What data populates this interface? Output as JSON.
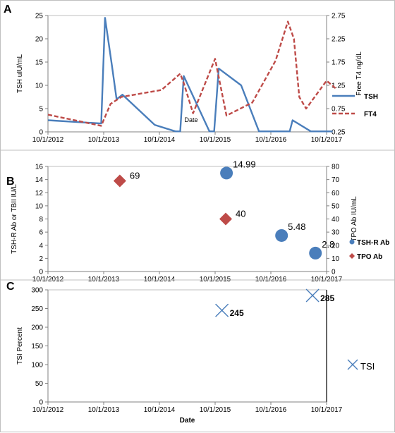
{
  "chart_data": [
    {
      "panel_label": "A",
      "type": "line",
      "x_ticks": [
        "10/1/2012",
        "10/1/2013",
        "10/1/2014",
        "10/1/2015",
        "10/1/2016",
        "10/1/2017"
      ],
      "xlim": [
        "2012-10-01",
        "2017-10-01"
      ],
      "ylabel": "TSH uIU/mL",
      "y_ticks": [
        "0",
        "5",
        "10",
        "15",
        "20",
        "25"
      ],
      "ylim": [
        0,
        25
      ],
      "ylabel_right": "Free T4 ng/dL",
      "y_right_ticks": [
        "0.25",
        "0.75",
        "1.25",
        "1.75",
        "2.25",
        "2.75"
      ],
      "ylim_right": [
        0.25,
        2.75
      ],
      "annotation": "Date",
      "legend_position": "right",
      "series": [
        {
          "name": "TSH",
          "axis": "left",
          "color": "#4A7EBB",
          "style": "solid",
          "points": [
            [
              "2012-10-01",
              2.5
            ],
            [
              "2013-09-15",
              1.8
            ],
            [
              "2013-10-10",
              24.5
            ],
            [
              "2013-11-25",
              14.0
            ],
            [
              "2013-12-25",
              7.0
            ],
            [
              "2014-02-01",
              8.0
            ],
            [
              "2014-09-01",
              1.5
            ],
            [
              "2015-01-15",
              0.1
            ],
            [
              "2015-02-15",
              0.1
            ],
            [
              "2015-03-10",
              12.0
            ],
            [
              "2015-08-25",
              0.1
            ],
            [
              "2015-09-25",
              0.1
            ],
            [
              "2015-10-25",
              13.6
            ],
            [
              "2016-03-20",
              10.0
            ],
            [
              "2016-07-15",
              0.1
            ],
            [
              "2017-01-15",
              0.1
            ],
            [
              "2017-02-01",
              0.1
            ],
            [
              "2017-02-20",
              2.5
            ],
            [
              "2017-06-20",
              0.1
            ],
            [
              "2017-11-10",
              0.1
            ]
          ]
        },
        {
          "name": "FT4",
          "axis": "right",
          "color": "#BE4B48",
          "style": "dashed",
          "points": [
            [
              "2012-10-01",
              0.62
            ],
            [
              "2013-09-15",
              0.38
            ],
            [
              "2013-11-15",
              0.85
            ],
            [
              "2014-01-25",
              1.0
            ],
            [
              "2014-10-15",
              1.15
            ],
            [
              "2015-02-15",
              1.5
            ],
            [
              "2015-03-10",
              1.3
            ],
            [
              "2015-05-10",
              0.65
            ],
            [
              "2015-10-01",
              1.82
            ],
            [
              "2015-12-15",
              0.6
            ],
            [
              "2016-06-01",
              0.88
            ],
            [
              "2016-11-01",
              1.78
            ],
            [
              "2017-01-20",
              2.62
            ],
            [
              "2017-03-01",
              2.25
            ],
            [
              "2017-04-05",
              1.0
            ],
            [
              "2017-05-20",
              0.75
            ],
            [
              "2017-10-01",
              1.35
            ],
            [
              "2017-12-01",
              1.18
            ]
          ]
        }
      ]
    },
    {
      "panel_label": "B",
      "type": "scatter",
      "x_ticks": [
        "10/1/2012",
        "10/1/2013",
        "10/1/2014",
        "10/1/2015",
        "10/1/2016",
        "10/1/2017"
      ],
      "xlim": [
        "2012-10-01",
        "2017-10-01"
      ],
      "ylabel": "TSH-R Ab or TBII IU/L",
      "y_ticks": [
        "0",
        "2",
        "4",
        "6",
        "8",
        "10",
        "12",
        "14",
        "16"
      ],
      "ylim": [
        0,
        16
      ],
      "ylabel_right": "TPO Ab IU/mL",
      "y_right_ticks": [
        "0",
        "10",
        "20",
        "30",
        "40",
        "50",
        "60",
        "70",
        "80"
      ],
      "ylim_right": [
        0,
        80
      ],
      "legend_position": "right",
      "series": [
        {
          "name": "TSH-R Ab",
          "axis": "left",
          "color": "#4A7EBB",
          "marker": "circle",
          "points": [
            [
              "2015-12-15",
              14.99,
              "14.99"
            ],
            [
              "2016-12-10",
              5.48,
              "5.48"
            ],
            [
              "2017-07-20",
              2.8,
              "2.8"
            ]
          ]
        },
        {
          "name": "TPO Ab",
          "axis": "right",
          "color": "#BE4B48",
          "marker": "diamond",
          "points": [
            [
              "2014-01-15",
              69,
              "69"
            ],
            [
              "2015-12-10",
              40,
              "40"
            ]
          ]
        }
      ]
    },
    {
      "panel_label": "C",
      "type": "scatter",
      "x_ticks": [
        "10/1/2012",
        "10/1/2013",
        "10/1/2014",
        "10/1/2015",
        "10/1/2016",
        "10/1/2017"
      ],
      "xlim": [
        "2012-10-01",
        "2017-10-01"
      ],
      "xlabel": "Date",
      "ylabel": "TSI Percent",
      "y_ticks": [
        "0",
        "50",
        "100",
        "150",
        "200",
        "250",
        "300"
      ],
      "ylim": [
        0,
        300
      ],
      "legend_position": "right",
      "series": [
        {
          "name": "TSI",
          "axis": "left",
          "color": "#4A7EBB",
          "marker": "x",
          "points": [
            [
              "2015-11-15",
              245,
              "245"
            ],
            [
              "2017-07-01",
              285,
              "285"
            ]
          ]
        }
      ]
    }
  ]
}
